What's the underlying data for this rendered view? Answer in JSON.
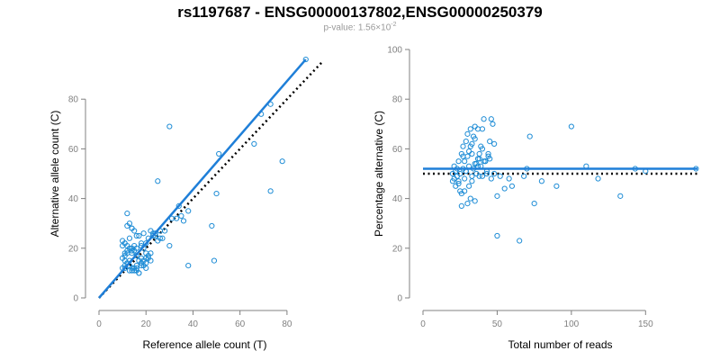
{
  "header": {
    "title": "rs1197687 - ENSG00000137802,ENSG00000250379",
    "pvalue_prefix": "p-value: 1.56×10",
    "pvalue_exponent": "-2"
  },
  "colors": {
    "point": "#1f8dd6",
    "fit_line": "#1f7fd8",
    "reference_line": "#000000",
    "axis": "#808080"
  },
  "chart_data": [
    {
      "type": "scatter",
      "xlabel": "Reference allele count (T)",
      "ylabel": "Alternative allele count (C)",
      "xlim": [
        0,
        90
      ],
      "ylim": [
        0,
        100
      ],
      "xticks": [
        0,
        20,
        40,
        60,
        80
      ],
      "yticks": [
        0,
        20,
        40,
        60,
        80
      ],
      "fit_line": {
        "x": [
          0,
          88
        ],
        "y": [
          0,
          96
        ]
      },
      "reference_line": {
        "x": [
          0,
          95
        ],
        "y": [
          0,
          95
        ]
      },
      "points": {
        "x": [
          88,
          73,
          69,
          78,
          66,
          51,
          73,
          30,
          25,
          50,
          48,
          49,
          38,
          30,
          34,
          36,
          33,
          28,
          26,
          23,
          24,
          22,
          20,
          19,
          21,
          20,
          18,
          16,
          14,
          12,
          11,
          13,
          12,
          11,
          15,
          17,
          19,
          21,
          18,
          16,
          14,
          13,
          12,
          11,
          10,
          10,
          11,
          12,
          13,
          14,
          15,
          16,
          17,
          18,
          19,
          20,
          21,
          22,
          15,
          14,
          12,
          11,
          16,
          18,
          20,
          10,
          13,
          17,
          19,
          15,
          14,
          12,
          11,
          13,
          25,
          27,
          23,
          24,
          26,
          38,
          35,
          31,
          22,
          18,
          16,
          14,
          12,
          13,
          15,
          17,
          11,
          10,
          14,
          16,
          18,
          20
        ],
        "y": [
          96,
          78,
          74,
          55,
          62,
          58,
          43,
          69,
          47,
          42,
          29,
          15,
          13,
          21,
          37,
          31,
          32,
          27,
          24,
          26,
          25,
          27,
          22,
          20,
          24,
          18,
          21,
          20,
          19,
          18,
          17,
          15,
          14,
          12,
          11,
          10,
          13,
          16,
          22,
          25,
          28,
          30,
          34,
          22,
          21,
          16,
          15,
          14,
          13,
          12,
          12,
          11,
          10,
          14,
          15,
          16,
          17,
          18,
          19,
          20,
          21,
          22,
          13,
          14,
          12,
          23,
          24,
          25,
          26,
          27,
          28,
          29,
          18,
          11,
          23,
          24,
          25,
          26,
          27,
          35,
          33,
          32,
          15,
          16,
          17,
          18,
          19,
          20,
          21,
          15,
          13,
          12,
          11,
          12,
          13,
          14
        ]
      }
    },
    {
      "type": "scatter",
      "xlabel": "Total number of reads",
      "ylabel": "Percentage alternative (C)",
      "xlim": [
        0,
        185
      ],
      "ylim": [
        0,
        100
      ],
      "xticks": [
        0,
        50,
        100,
        150
      ],
      "yticks": [
        0,
        20,
        40,
        60,
        80,
        100
      ],
      "fit_line": {
        "x": [
          0,
          185
        ],
        "y": [
          52,
          52
        ]
      },
      "reference_line": {
        "x": [
          0,
          185
        ],
        "y": [
          50,
          50
        ]
      },
      "points": {
        "x": [
          184,
          143,
          150,
          133,
          118,
          110,
          100,
          90,
          80,
          75,
          72,
          70,
          68,
          65,
          60,
          58,
          55,
          52,
          50,
          50,
          48,
          47,
          46,
          45,
          44,
          43,
          42,
          41,
          40,
          40,
          39,
          38,
          38,
          37,
          36,
          35,
          35,
          34,
          33,
          33,
          32,
          32,
          31,
          30,
          30,
          29,
          29,
          28,
          28,
          27,
          27,
          26,
          26,
          25,
          25,
          24,
          24,
          23,
          23,
          22,
          22,
          21,
          21,
          20,
          20,
          34,
          36,
          38,
          40,
          42,
          44,
          46,
          48,
          31,
          33,
          35,
          37,
          30,
          32,
          28,
          26,
          24,
          27,
          29,
          31,
          33,
          35,
          37,
          39,
          41,
          43,
          45
        ],
        "y": [
          52,
          52,
          51,
          41,
          48,
          53,
          69,
          45,
          47,
          38,
          65,
          52,
          49,
          23,
          45,
          48,
          44,
          49,
          25,
          41,
          62,
          70,
          72,
          63,
          58,
          51,
          55,
          72,
          68,
          60,
          61,
          49,
          58,
          68,
          50,
          69,
          54,
          65,
          58,
          47,
          68,
          61,
          45,
          57,
          38,
          63,
          51,
          55,
          48,
          61,
          52,
          37,
          58,
          50,
          43,
          55,
          47,
          52,
          49,
          51,
          45,
          48,
          53,
          47,
          50,
          52,
          54,
          56,
          49,
          55,
          57,
          48,
          50,
          59,
          62,
          39,
          53,
          66,
          40,
          43,
          42,
          46,
          57,
          51,
          53,
          49,
          64,
          56,
          53,
          55,
          50,
          56
        ]
      }
    }
  ]
}
